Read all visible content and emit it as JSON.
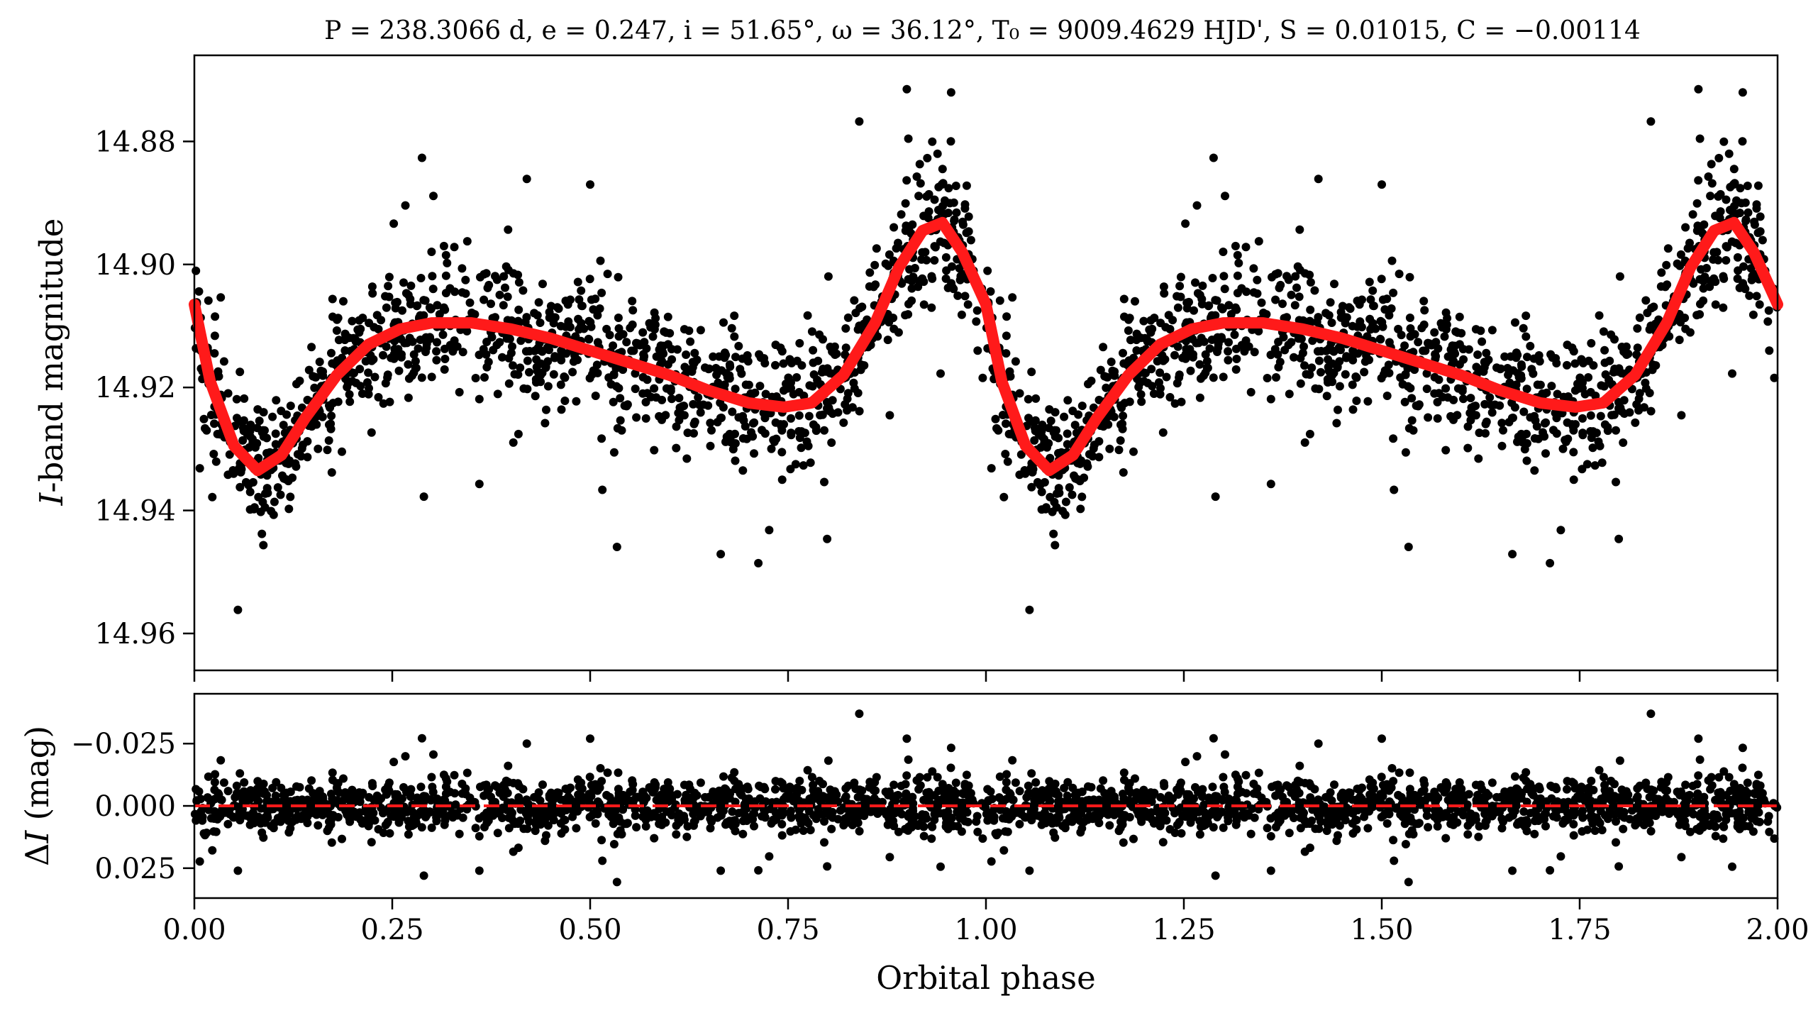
{
  "chart_data": [
    {
      "type": "scatter",
      "panel": "top",
      "title": "P = 238.3066 d, e = 0.247, i = 51.65°, ω = 36.12°, T₀ = 9009.4629 HJD', S = 0.01015, C = −0.00114",
      "xlabel": "",
      "ylabel": "I-band magnitude",
      "xlim": [
        0,
        2
      ],
      "ylim": [
        14.966,
        14.866
      ],
      "y_inverted": true,
      "y_ticks": [
        14.88,
        14.9,
        14.92,
        14.94,
        14.96
      ],
      "y_tick_labels": [
        "14.88",
        "14.90",
        "14.92",
        "14.94",
        "14.96"
      ],
      "x_ticks": [
        0,
        0.25,
        0.5,
        0.75,
        1.0,
        1.25,
        1.5,
        1.75,
        2.0
      ],
      "x_tick_labels_shown": false,
      "series": [
        {
          "kind": "points",
          "color": "#000000",
          "description_count": "about 1200 photometric points per phase cycle, repeated for phase 1–2",
          "scatter_sigma_mag": 0.0055
        },
        {
          "kind": "line",
          "color": "#ff1a1a",
          "points": [
            [
              0.0,
              14.9065
            ],
            [
              0.02,
              14.919
            ],
            [
              0.05,
              14.9295
            ],
            [
              0.08,
              14.9335
            ],
            [
              0.11,
              14.931
            ],
            [
              0.14,
              14.925
            ],
            [
              0.18,
              14.918
            ],
            [
              0.22,
              14.913
            ],
            [
              0.26,
              14.9105
            ],
            [
              0.3,
              14.9095
            ],
            [
              0.35,
              14.9095
            ],
            [
              0.4,
              14.9105
            ],
            [
              0.45,
              14.912
            ],
            [
              0.5,
              14.914
            ],
            [
              0.55,
              14.916
            ],
            [
              0.6,
              14.918
            ],
            [
              0.65,
              14.9205
            ],
            [
              0.7,
              14.9225
            ],
            [
              0.745,
              14.9232
            ],
            [
              0.78,
              14.9225
            ],
            [
              0.82,
              14.918
            ],
            [
              0.86,
              14.9095
            ],
            [
              0.89,
              14.9005
            ],
            [
              0.92,
              14.8945
            ],
            [
              0.945,
              14.8932
            ],
            [
              0.97,
              14.898
            ],
            [
              1.0,
              14.9065
            ],
            [
              1.02,
              14.919
            ],
            [
              1.05,
              14.9295
            ],
            [
              1.08,
              14.9335
            ],
            [
              1.11,
              14.931
            ],
            [
              1.14,
              14.925
            ],
            [
              1.18,
              14.918
            ],
            [
              1.22,
              14.913
            ],
            [
              1.26,
              14.9105
            ],
            [
              1.3,
              14.9095
            ],
            [
              1.35,
              14.9095
            ],
            [
              1.4,
              14.9105
            ],
            [
              1.45,
              14.912
            ],
            [
              1.5,
              14.914
            ],
            [
              1.55,
              14.916
            ],
            [
              1.6,
              14.918
            ],
            [
              1.65,
              14.9205
            ],
            [
              1.7,
              14.9225
            ],
            [
              1.745,
              14.9232
            ],
            [
              1.78,
              14.9225
            ],
            [
              1.82,
              14.918
            ],
            [
              1.86,
              14.9095
            ],
            [
              1.89,
              14.9005
            ],
            [
              1.92,
              14.8945
            ],
            [
              1.945,
              14.8932
            ],
            [
              1.97,
              14.898
            ],
            [
              2.0,
              14.9065
            ]
          ]
        }
      ]
    },
    {
      "type": "scatter",
      "panel": "bottom",
      "xlabel": "Orbital phase",
      "ylabel": "ΔI (mag)",
      "xlim": [
        0,
        2
      ],
      "ylim": [
        0.037,
        -0.045
      ],
      "y_inverted": true,
      "y_ticks": [
        -0.025,
        0.0,
        0.025
      ],
      "y_tick_labels": [
        "−0.025",
        "0.000",
        "0.025"
      ],
      "x_ticks": [
        0,
        0.25,
        0.5,
        0.75,
        1.0,
        1.25,
        1.5,
        1.75,
        2.0
      ],
      "x_tick_labels": [
        "0.00",
        "0.25",
        "0.50",
        "0.75",
        "1.00",
        "1.25",
        "1.50",
        "1.75",
        "2.00"
      ],
      "series": [
        {
          "kind": "points",
          "color": "#000000",
          "scatter_sigma_mag": 0.0055
        },
        {
          "kind": "reference-line",
          "y": 0.0,
          "color": "#ff1a1a",
          "style": "dashed"
        }
      ],
      "notable_outliers": [
        [
          0.055,
          0.026
        ],
        [
          0.29,
          0.028
        ],
        [
          0.36,
          0.026
        ],
        [
          0.42,
          -0.025
        ],
        [
          0.5,
          -0.027
        ],
        [
          0.665,
          0.026
        ],
        [
          0.84,
          -0.037
        ],
        [
          0.9,
          -0.027
        ]
      ]
    }
  ]
}
